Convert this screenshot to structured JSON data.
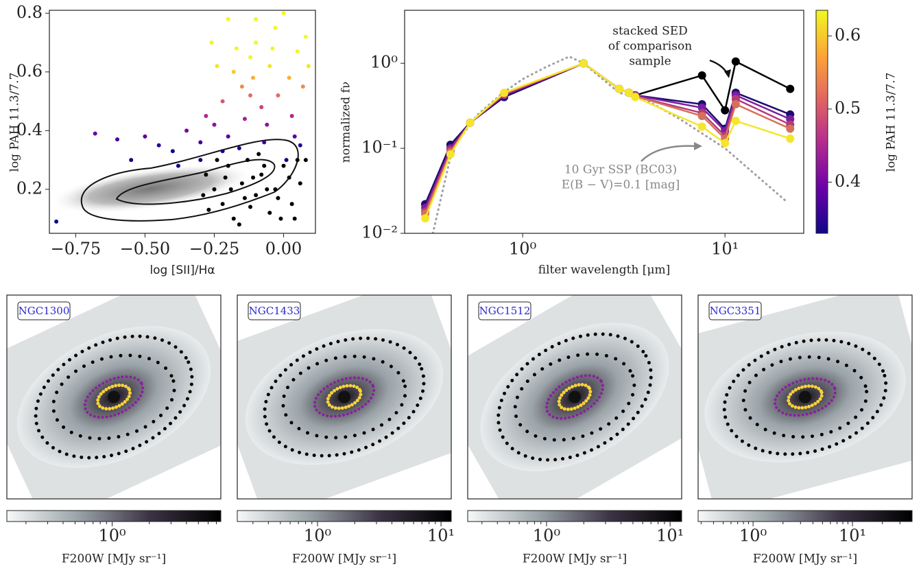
{
  "chart_data": [
    {
      "type": "scatter",
      "x_label": "log [SII]/Hα",
      "y_label": "log PAH 11.3/7.7",
      "xlim": [
        -0.845,
        0.115
      ],
      "ylim": [
        0.05,
        0.81
      ],
      "xticks": [
        {
          "value": -0.75,
          "label": "−0.75"
        },
        {
          "value": -0.5,
          "label": "−0.50"
        },
        {
          "value": -0.25,
          "label": "−0.25"
        },
        {
          "value": 0,
          "label": "0.00"
        }
      ],
      "yticks": [
        0.2,
        0.4,
        0.6,
        0.8
      ],
      "series": [
        {
          "x": [
            -0.82,
            -0.68,
            -0.6,
            -0.5,
            -0.45,
            -0.4,
            -0.35,
            -0.3,
            -0.28,
            -0.25,
            -0.22,
            -0.2,
            -0.18,
            -0.15,
            -0.12,
            -0.1,
            -0.08,
            -0.05,
            -0.03,
            0.0,
            0.02,
            0.05,
            0.08,
            -0.14,
            -0.06,
            0.03,
            0.06,
            -0.2,
            -0.1,
            0.07,
            -0.17,
            -0.24,
            -0.26,
            -0.12,
            -0.02,
            0.09,
            -0.3,
            -0.55,
            -0.38,
            -0.16,
            0.04,
            -0.07,
            -0.22,
            0.01,
            -0.11,
            -0.04
          ],
          "values": [
            0.09,
            0.39,
            0.37,
            0.38,
            0.35,
            0.33,
            0.4,
            0.36,
            0.45,
            0.42,
            0.5,
            0.38,
            0.6,
            0.55,
            0.65,
            0.7,
            0.48,
            0.62,
            0.75,
            0.8,
            0.58,
            0.67,
            0.72,
            0.44,
            0.42,
            0.45,
            0.35,
            0.78,
            0.78,
            0.55,
            0.68,
            0.62,
            0.7,
            0.52,
            0.52,
            0.62,
            0.3,
            0.3,
            0.28,
            0.34,
            0.38,
            0.36,
            0.33,
            0.3,
            0.58,
            0.68
          ]
        },
        {
          "color": "#000000",
          "x": [
            -0.28,
            -0.25,
            -0.22,
            -0.2,
            -0.18,
            -0.15,
            -0.13,
            -0.1,
            -0.08,
            -0.05,
            -0.03,
            0.0,
            0.03,
            0.06,
            0.08,
            -0.27,
            -0.24,
            -0.19,
            -0.16,
            -0.12,
            -0.09,
            -0.06,
            -0.01,
            0.02,
            0.05,
            -0.21,
            -0.14,
            -0.07,
            -0.02,
            0.04,
            -0.29,
            -0.11
          ],
          "values": [
            0.25,
            0.2,
            0.15,
            0.28,
            0.1,
            0.22,
            0.3,
            0.18,
            0.25,
            0.12,
            0.2,
            0.28,
            0.15,
            0.22,
            0.3,
            0.13,
            0.3,
            0.2,
            0.08,
            0.14,
            0.32,
            0.2,
            0.1,
            0.24,
            0.3,
            0.24,
            0.17,
            0.28,
            0.17,
            0.1,
            0.18,
            0.24
          ]
        }
      ]
    },
    {
      "type": "line",
      "log_x": true,
      "log_y": true,
      "x_label": "filter wavelength [μm]",
      "y_label": "normalized fν",
      "xlim": [
        0.261,
        24.5
      ],
      "ylim": [
        0.01,
        4.2
      ],
      "xticks": [
        {
          "value": 1,
          "label": "10⁰"
        },
        {
          "value": 10,
          "label": "10¹"
        }
      ],
      "yticks": [
        {
          "value": 0.01,
          "label": "10⁻²"
        },
        {
          "value": 0.1,
          "label": "10⁻¹"
        },
        {
          "value": 1,
          "label": "10⁰"
        }
      ],
      "x": [
        0.33,
        0.44,
        0.55,
        0.81,
        2.0,
        3.0,
        3.35,
        3.6,
        7.7,
        10,
        11.3,
        21
      ],
      "annotations": [
        "stacked SED",
        "of comparison",
        "sample",
        "10 Gyr SSP (BC03)",
        "E(B − V)=0.1 [mag]"
      ],
      "series": [
        {
          "color": "#a0a0a0",
          "style": "dotted",
          "x": [
            0.36,
            0.45,
            0.6,
            0.8,
            1.0,
            1.3,
            1.7,
            2.0,
            3.0,
            4.0,
            6.0,
            10,
            20
          ],
          "values": [
            0.01,
            0.1,
            0.25,
            0.45,
            0.65,
            0.9,
            1.2,
            1.0,
            0.45,
            0.38,
            0.22,
            0.1,
            0.024
          ]
        },
        {
          "color": "#000000",
          "values": [
            0.022,
            0.11,
            0.2,
            0.42,
            1.0,
            0.5,
            0.45,
            0.42,
            0.72,
            0.28,
            1.05,
            0.5
          ]
        },
        {
          "color": "#1f0c6e",
          "values": [
            0.022,
            0.11,
            0.2,
            0.4,
            1.0,
            0.5,
            0.45,
            0.42,
            0.33,
            0.17,
            0.45,
            0.25
          ]
        },
        {
          "color": "#7a1ea0",
          "values": [
            0.02,
            0.1,
            0.2,
            0.42,
            1.0,
            0.5,
            0.45,
            0.42,
            0.3,
            0.16,
            0.42,
            0.22
          ]
        },
        {
          "color": "#b53a78",
          "values": [
            0.018,
            0.095,
            0.2,
            0.43,
            1.0,
            0.5,
            0.45,
            0.41,
            0.26,
            0.14,
            0.38,
            0.19
          ]
        },
        {
          "color": "#d6705a",
          "values": [
            0.017,
            0.09,
            0.2,
            0.44,
            1.0,
            0.5,
            0.45,
            0.41,
            0.24,
            0.13,
            0.33,
            0.17
          ]
        },
        {
          "color": "#f5e62a",
          "values": [
            0.015,
            0.085,
            0.2,
            0.45,
            1.0,
            0.5,
            0.45,
            0.4,
            0.18,
            0.115,
            0.21,
            0.13
          ]
        }
      ],
      "colorbar": {
        "label": "log PAH 11.3/7.7",
        "lim": [
          0.33,
          0.635
        ],
        "ticks": [
          0.4,
          0.5,
          0.6
        ],
        "colors": [
          "#0d0887",
          "#6a00a8",
          "#b12a90",
          "#e16462",
          "#fca636",
          "#f0f921"
        ]
      }
    },
    {
      "type": "image",
      "label": "NGC1300",
      "colorbar": {
        "label": "F200W [MJy sr⁻¹]",
        "log": true,
        "lim": [
          0.14,
          7.6
        ],
        "ticks": [
          {
            "value": 1,
            "label": "10⁰"
          }
        ],
        "colors": [
          "#f7f9f9",
          "#9aa3a8",
          "#3c3344",
          "#000000"
        ]
      }
    },
    {
      "type": "image",
      "label": "NGC1433",
      "colorbar": {
        "label": "F200W [MJy sr⁻¹]",
        "log": true,
        "lim": [
          0.224,
          12.1
        ],
        "ticks": [
          {
            "value": 1,
            "label": "10⁰"
          },
          {
            "value": 10,
            "label": "10¹"
          }
        ],
        "colors": [
          "#f7f9f9",
          "#9aa3a8",
          "#3c3344",
          "#000000"
        ]
      }
    },
    {
      "type": "image",
      "label": "NGC1512",
      "colorbar": {
        "label": "F200W [MJy sr⁻¹]",
        "log": true,
        "lim": [
          0.23,
          12.4
        ],
        "ticks": [
          {
            "value": 1,
            "label": "10⁰"
          },
          {
            "value": 10,
            "label": "10¹"
          }
        ],
        "colors": [
          "#f7f9f9",
          "#9aa3a8",
          "#3c3344",
          "#000000"
        ]
      }
    },
    {
      "type": "image",
      "label": "NGC3351",
      "colorbar": {
        "label": "F200W [MJy sr⁻¹]",
        "log": true,
        "lim": [
          0.28,
          39.8
        ],
        "ticks": [
          {
            "value": 1,
            "label": "10⁰"
          },
          {
            "value": 10,
            "label": "10¹"
          }
        ],
        "colors": [
          "#f7f9f9",
          "#9aa3a8",
          "#3c3344",
          "#000000"
        ]
      }
    }
  ]
}
